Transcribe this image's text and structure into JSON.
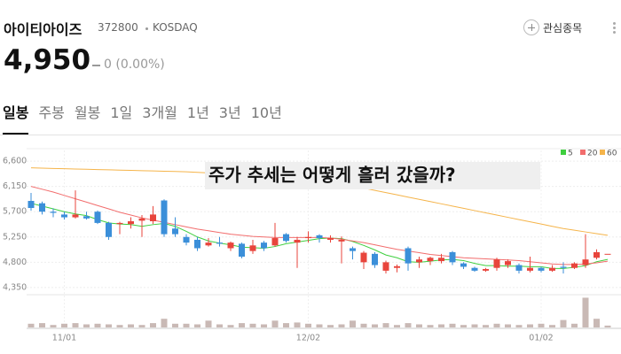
{
  "header": {
    "name": "아이티아이즈",
    "code": "372800",
    "market": "KOSDAQ",
    "watch_label": "관심종목"
  },
  "price": {
    "value": "4,950",
    "change": "0 (0.00%)"
  },
  "tabs": [
    "일봉",
    "주봉",
    "월봉",
    "1일",
    "3개월",
    "1년",
    "3년",
    "10년"
  ],
  "chart_data": {
    "type": "candlestick",
    "title": "주가 추세는 어떻게 흘러 갔을까?",
    "categories": [
      null,
      null,
      null,
      "11/01",
      null,
      null,
      null,
      null,
      null,
      null,
      null,
      null,
      null,
      null,
      null,
      null,
      null,
      null,
      null,
      null,
      null,
      null,
      null,
      null,
      null,
      "12/02",
      null,
      null,
      null,
      null,
      null,
      null,
      null,
      null,
      null,
      null,
      null,
      null,
      null,
      null,
      null,
      null,
      null,
      null,
      null,
      null,
      "01/02",
      null,
      null,
      null,
      null,
      null,
      null
    ],
    "open": [
      5892,
      5850,
      5700,
      5650,
      5600,
      5620,
      5700,
      5500,
      5480,
      5480,
      5540,
      5530,
      5900,
      5400,
      5250,
      5200,
      5100,
      5150,
      5050,
      5130,
      5000,
      5150,
      5100,
      5300,
      5150,
      5230,
      5280,
      5200,
      5170,
      5050,
      4800,
      4950,
      4650,
      4700,
      5050,
      4800,
      4820,
      4820,
      4980,
      4780,
      4700,
      4650,
      4700,
      4750,
      4750,
      4650,
      4700,
      4650,
      4720,
      4700,
      4750,
      4880,
      4950
    ],
    "high": [
      6034,
      5880,
      5760,
      5700,
      6080,
      5700,
      5720,
      5520,
      5520,
      5600,
      5640,
      5800,
      5920,
      5600,
      5300,
      5250,
      5230,
      5250,
      5170,
      5150,
      5200,
      5180,
      5500,
      5320,
      5250,
      5350,
      5300,
      5280,
      5260,
      5080,
      5000,
      4980,
      4830,
      4760,
      5080,
      4900,
      4900,
      4950,
      5000,
      4800,
      4720,
      4700,
      4880,
      4850,
      4780,
      4900,
      4720,
      4750,
      4800,
      4800,
      5300,
      5030,
      4950
    ],
    "low": [
      5719,
      5650,
      5600,
      5560,
      5580,
      5560,
      5480,
      5200,
      5300,
      5400,
      5250,
      5480,
      5250,
      5250,
      5100,
      5000,
      5080,
      5080,
      5000,
      4870,
      4950,
      5000,
      5080,
      5150,
      4700,
      5150,
      5150,
      5150,
      4780,
      4850,
      4680,
      4700,
      4600,
      4620,
      4650,
      4700,
      4750,
      4780,
      4750,
      4680,
      4630,
      4630,
      4650,
      4700,
      4600,
      4620,
      4620,
      4630,
      4600,
      4680,
      4700,
      4850,
      4950
    ],
    "close": [
      5766,
      5700,
      5680,
      5600,
      5650,
      5580,
      5500,
      5250,
      5500,
      5530,
      5580,
      5650,
      5300,
      5300,
      5150,
      5050,
      5150,
      5130,
      5150,
      4900,
      5100,
      5050,
      5230,
      5180,
      5200,
      5250,
      5230,
      5230,
      5200,
      5000,
      4970,
      4750,
      4800,
      4730,
      4780,
      4850,
      4880,
      4880,
      4800,
      4720,
      4650,
      4680,
      4850,
      4820,
      4650,
      4700,
      4650,
      4700,
      4700,
      4780,
      4850,
      4980,
      4950
    ],
    "volume": [
      60000,
      70000,
      40000,
      60000,
      70000,
      50000,
      60000,
      50000,
      40000,
      50000,
      40000,
      70000,
      140000,
      60000,
      60000,
      50000,
      110000,
      50000,
      40000,
      70000,
      60000,
      50000,
      110000,
      70000,
      80000,
      60000,
      50000,
      40000,
      50000,
      110000,
      60000,
      50000,
      70000,
      40000,
      70000,
      50000,
      40000,
      50000,
      60000,
      40000,
      50000,
      40000,
      60000,
      50000,
      40000,
      50000,
      60000,
      40000,
      120000,
      60000,
      480000,
      140000,
      30000
    ],
    "vlim": [
      0,
      500000
    ],
    "up_color": "#e8453c",
    "down_color": "#3b8fd9",
    "volume_color": "#c9b9b5",
    "series": [
      {
        "name": "5",
        "color": "#3fcf3f",
        "values": [
          5850,
          5800,
          5750,
          5700,
          5660,
          5630,
          5560,
          5500,
          5480,
          5470,
          5440,
          5470,
          5490,
          5440,
          5350,
          5250,
          5180,
          5140,
          5110,
          5070,
          5060,
          5050,
          5080,
          5130,
          5160,
          5190,
          5220,
          5230,
          5220,
          5170,
          5100,
          5020,
          4930,
          4880,
          4810,
          4800,
          4820,
          4840,
          4850,
          4830,
          4780,
          4740,
          4740,
          4730,
          4730,
          4720,
          4720,
          4690,
          4690,
          4710,
          4740,
          4810,
          4850
        ]
      },
      {
        "name": "20",
        "color": "#f26d6d",
        "values": [
          6150,
          6100,
          6050,
          5990,
          5930,
          5870,
          5810,
          5750,
          5690,
          5640,
          5590,
          5550,
          5510,
          5470,
          5430,
          5390,
          5360,
          5330,
          5300,
          5280,
          5260,
          5250,
          5240,
          5240,
          5240,
          5240,
          5240,
          5230,
          5210,
          5180,
          5150,
          5110,
          5070,
          5030,
          5000,
          4970,
          4940,
          4920,
          4900,
          4880,
          4870,
          4860,
          4850,
          4840,
          4830,
          4810,
          4790,
          4770,
          4760,
          4760,
          4770,
          4790,
          4820
        ]
      },
      {
        "name": "60",
        "color": "#f5b44a",
        "values": [
          6480,
          6475,
          6470,
          6465,
          6460,
          6455,
          6450,
          6445,
          6440,
          6435,
          6430,
          6425,
          6420,
          6415,
          6410,
          6400,
          6390,
          6380,
          6370,
          6360,
          6350,
          6340,
          6330,
          6310,
          6290,
          6270,
          6250,
          6220,
          6190,
          6160,
          6120,
          6080,
          6040,
          6000,
          5960,
          5920,
          5880,
          5840,
          5800,
          5760,
          5720,
          5680,
          5640,
          5600,
          5560,
          5520,
          5480,
          5440,
          5400,
          5370,
          5340,
          5310,
          5280
        ]
      }
    ],
    "ylim": [
      4270,
      6790
    ],
    "yticks": [
      {
        "value": 4350,
        "label": "4,350"
      },
      {
        "value": 4800,
        "label": "4,800"
      },
      {
        "value": 5250,
        "label": "5,250"
      },
      {
        "value": 5700,
        "label": "5,700"
      },
      {
        "value": 6150,
        "label": "6,150"
      },
      {
        "value": 6600,
        "label": "6,600"
      }
    ],
    "grid": true
  }
}
